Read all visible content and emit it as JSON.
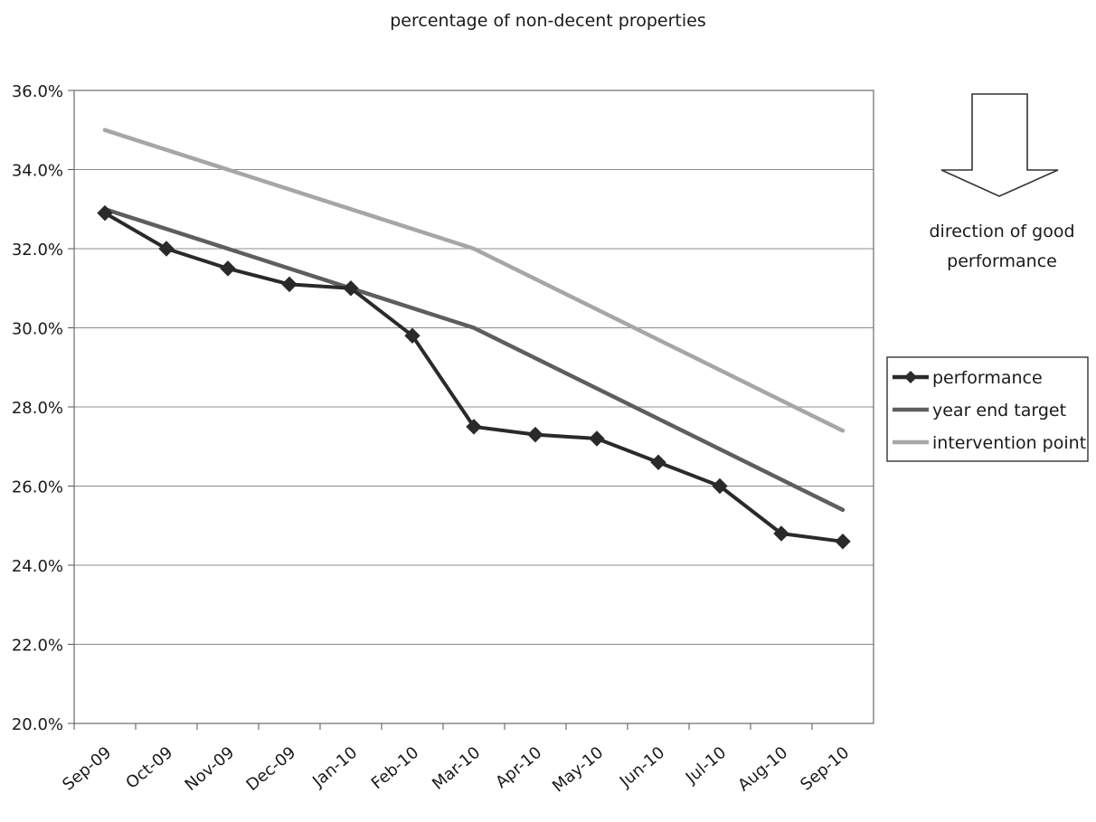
{
  "chart_data": {
    "type": "line",
    "title": "percentage of non-decent properties",
    "categories": [
      "Sep-09",
      "Oct-09",
      "Nov-09",
      "Dec-09",
      "Jan-10",
      "Feb-10",
      "Mar-10",
      "Apr-10",
      "May-10",
      "Jun-10",
      "Jul-10",
      "Aug-10",
      "Sep-10"
    ],
    "y_ticks": [
      "20.0%",
      "22.0%",
      "24.0%",
      "26.0%",
      "28.0%",
      "30.0%",
      "32.0%",
      "34.0%",
      "36.0%"
    ],
    "ylim": [
      20,
      36
    ],
    "grid": true,
    "legend_position": "right",
    "series": [
      {
        "name": "performance",
        "color": "#2a2a2a",
        "marker": "diamond",
        "values": [
          32.9,
          32.0,
          31.5,
          31.1,
          31.0,
          29.8,
          27.5,
          27.3,
          27.2,
          26.6,
          26.0,
          24.8,
          24.6
        ]
      },
      {
        "name": "year end target",
        "color": "#5e5e5e",
        "marker": "none",
        "values": [
          33.0,
          null,
          null,
          null,
          31.0,
          null,
          30.0,
          null,
          null,
          null,
          null,
          null,
          25.4
        ]
      },
      {
        "name": "intervention point",
        "color": "#a6a6a6",
        "marker": "none",
        "values": [
          35.0,
          null,
          null,
          null,
          33.0,
          null,
          32.0,
          null,
          null,
          null,
          null,
          null,
          27.4
        ]
      }
    ],
    "annotation": {
      "line1": "direction of good",
      "line2": "performance",
      "icon": "down-arrow-icon"
    }
  }
}
